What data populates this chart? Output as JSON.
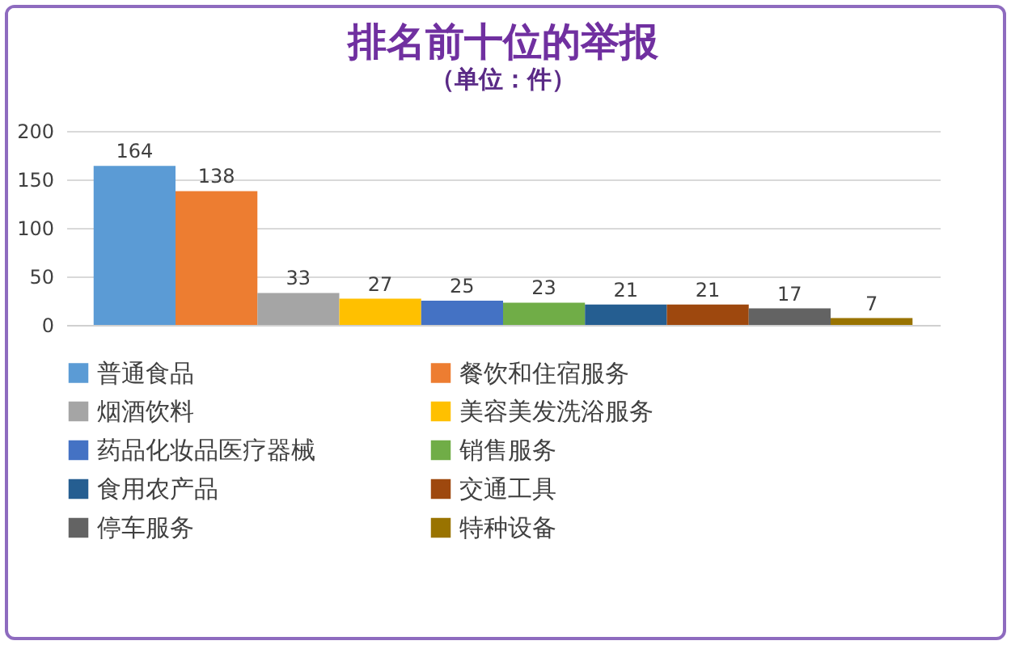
{
  "chart_data": {
    "type": "bar",
    "title": "排名前十位的举报",
    "subtitle": "（单位：件）",
    "categories": [
      null
    ],
    "series": [
      {
        "name": "普通食品",
        "color": "#5b9bd5",
        "values": [
          164
        ]
      },
      {
        "name": "餐饮和住宿服务",
        "color": "#ed7d31",
        "values": [
          138
        ]
      },
      {
        "name": "烟酒饮料",
        "color": "#a5a5a5",
        "values": [
          33
        ]
      },
      {
        "name": "美容美发洗浴服务",
        "color": "#ffc000",
        "values": [
          27
        ]
      },
      {
        "name": "药品化妆品医疗器械",
        "color": "#4472c4",
        "values": [
          25
        ]
      },
      {
        "name": "销售服务",
        "color": "#70ad47",
        "values": [
          23
        ]
      },
      {
        "name": "食用农产品",
        "color": "#255e91",
        "values": [
          21
        ]
      },
      {
        "name": "交通工具",
        "color": "#9e480e",
        "values": [
          21
        ]
      },
      {
        "name": "停车服务",
        "color": "#636363",
        "values": [
          17
        ]
      },
      {
        "name": "特种设备",
        "color": "#997300",
        "values": [
          7
        ]
      }
    ],
    "ylim": [
      0,
      200
    ],
    "yticks": [
      0,
      50,
      100,
      150,
      200
    ],
    "grid": "y",
    "legend": "bottom",
    "tick_labels": "y",
    "data_labels": true
  }
}
